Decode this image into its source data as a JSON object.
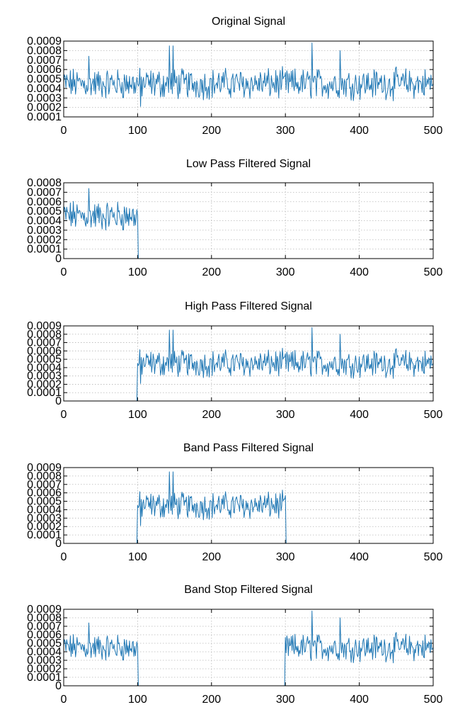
{
  "colors": {
    "series": "#1f77b4",
    "axis": "#000000",
    "grid": "#b8b8b8"
  },
  "chart_data": [
    {
      "type": "line",
      "title": "Original Signal",
      "xlabel": "",
      "ylabel": "",
      "xlim": [
        0,
        500
      ],
      "ylim": [
        0.0001,
        0.0009
      ],
      "xticks": [
        "0",
        "100",
        "200",
        "300",
        "400",
        "500"
      ],
      "yticks": [
        "0.0001",
        "0.0002",
        "0.0003",
        "0.0004",
        "0.0005",
        "0.0006",
        "0.0007",
        "0.0008",
        "0.0009"
      ],
      "grid": true,
      "series": [
        {
          "regions": [
            {
              "x": [
                0,
                500
              ],
              "amplitude": "full"
            }
          ]
        }
      ]
    },
    {
      "type": "line",
      "title": "Low Pass Filtered Signal",
      "xlabel": "",
      "ylabel": "",
      "xlim": [
        0,
        500
      ],
      "ylim": [
        0,
        0.0008
      ],
      "xticks": [
        "0",
        "100",
        "200",
        "300",
        "400",
        "500"
      ],
      "yticks": [
        "0",
        "0.0001",
        "0.0002",
        "0.0003",
        "0.0004",
        "0.0005",
        "0.0006",
        "0.0007",
        "0.0008"
      ],
      "grid": true,
      "series": [
        {
          "regions": [
            {
              "x": [
                0,
                100
              ],
              "amplitude": "full"
            },
            {
              "x": [
                100,
                500
              ],
              "amplitude": "zero"
            }
          ]
        }
      ]
    },
    {
      "type": "line",
      "title": "High Pass Filtered Signal",
      "xlabel": "",
      "ylabel": "",
      "xlim": [
        0,
        500
      ],
      "ylim": [
        0,
        0.0009
      ],
      "xticks": [
        "0",
        "100",
        "200",
        "300",
        "400",
        "500"
      ],
      "yticks": [
        "0",
        "0.0001",
        "0.0002",
        "0.0003",
        "0.0004",
        "0.0005",
        "0.0006",
        "0.0007",
        "0.0008",
        "0.0009"
      ],
      "grid": true,
      "series": [
        {
          "regions": [
            {
              "x": [
                0,
                100
              ],
              "amplitude": "zero"
            },
            {
              "x": [
                100,
                500
              ],
              "amplitude": "full"
            }
          ]
        }
      ]
    },
    {
      "type": "line",
      "title": "Band Pass Filtered Signal",
      "xlabel": "",
      "ylabel": "",
      "xlim": [
        0,
        500
      ],
      "ylim": [
        0,
        0.0009
      ],
      "xticks": [
        "0",
        "100",
        "200",
        "300",
        "400",
        "500"
      ],
      "yticks": [
        "0",
        "0.0001",
        "0.0002",
        "0.0003",
        "0.0004",
        "0.0005",
        "0.0006",
        "0.0007",
        "0.0008",
        "0.0009"
      ],
      "grid": true,
      "series": [
        {
          "regions": [
            {
              "x": [
                0,
                100
              ],
              "amplitude": "zero"
            },
            {
              "x": [
                100,
                300
              ],
              "amplitude": "full"
            },
            {
              "x": [
                300,
                500
              ],
              "amplitude": "zero"
            }
          ]
        }
      ]
    },
    {
      "type": "line",
      "title": "Band Stop Filtered Signal",
      "xlabel": "",
      "ylabel": "",
      "xlim": [
        0,
        500
      ],
      "ylim": [
        0,
        0.0009
      ],
      "xticks": [
        "0",
        "100",
        "200",
        "300",
        "400",
        "500"
      ],
      "yticks": [
        "0",
        "0.0001",
        "0.0002",
        "0.0003",
        "0.0004",
        "0.0005",
        "0.0006",
        "0.0007",
        "0.0008",
        "0.0009"
      ],
      "grid": true,
      "series": [
        {
          "regions": [
            {
              "x": [
                0,
                100
              ],
              "amplitude": "full"
            },
            {
              "x": [
                100,
                300
              ],
              "amplitude": "zero"
            },
            {
              "x": [
                300,
                500
              ],
              "amplitude": "full"
            }
          ]
        }
      ]
    }
  ]
}
